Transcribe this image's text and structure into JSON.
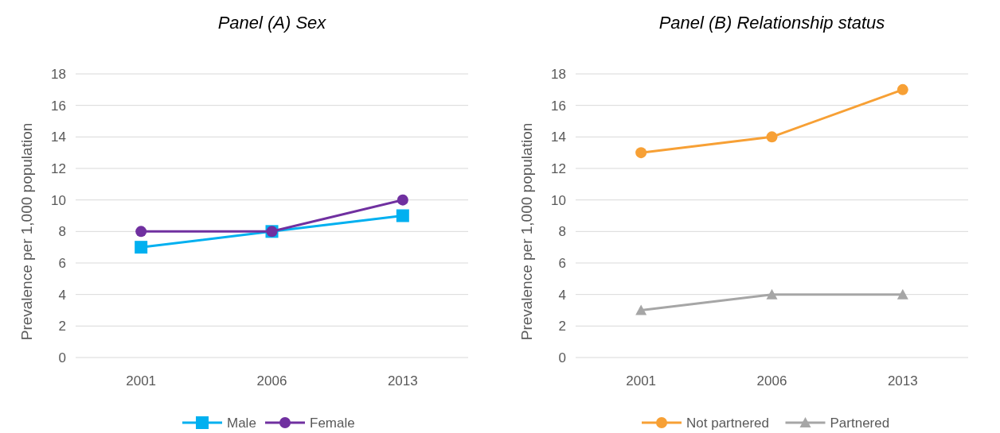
{
  "chart_data": [
    {
      "type": "line",
      "title": "Panel (A) Sex",
      "ylabel": "Prevalence per 1,000 population",
      "categories": [
        "2001",
        "2006",
        "2013"
      ],
      "ylim": [
        0,
        18
      ],
      "yticks": [
        0,
        2,
        4,
        6,
        8,
        10,
        12,
        14,
        16,
        18
      ],
      "grid": "y",
      "legend": "bottom",
      "series": [
        {
          "name": "Male",
          "color": "#00b0f0",
          "marker": "square",
          "values": [
            7,
            8,
            9
          ]
        },
        {
          "name": "Female",
          "color": "#7030a0",
          "marker": "circle",
          "values": [
            8,
            8,
            10
          ]
        }
      ]
    },
    {
      "type": "line",
      "title": "Panel (B) Relationship status",
      "ylabel": "Prevalence per 1,000 population",
      "categories": [
        "2001",
        "2006",
        "2013"
      ],
      "ylim": [
        0,
        18
      ],
      "yticks": [
        0,
        2,
        4,
        6,
        8,
        10,
        12,
        14,
        16,
        18
      ],
      "grid": "y",
      "legend": "bottom",
      "series": [
        {
          "name": "Not partnered",
          "color": "#f7a035",
          "marker": "circle",
          "values": [
            13,
            14,
            17
          ]
        },
        {
          "name": "Partnered",
          "color": "#a6a6a6",
          "marker": "triangle",
          "values": [
            3,
            4,
            4
          ]
        }
      ]
    }
  ]
}
